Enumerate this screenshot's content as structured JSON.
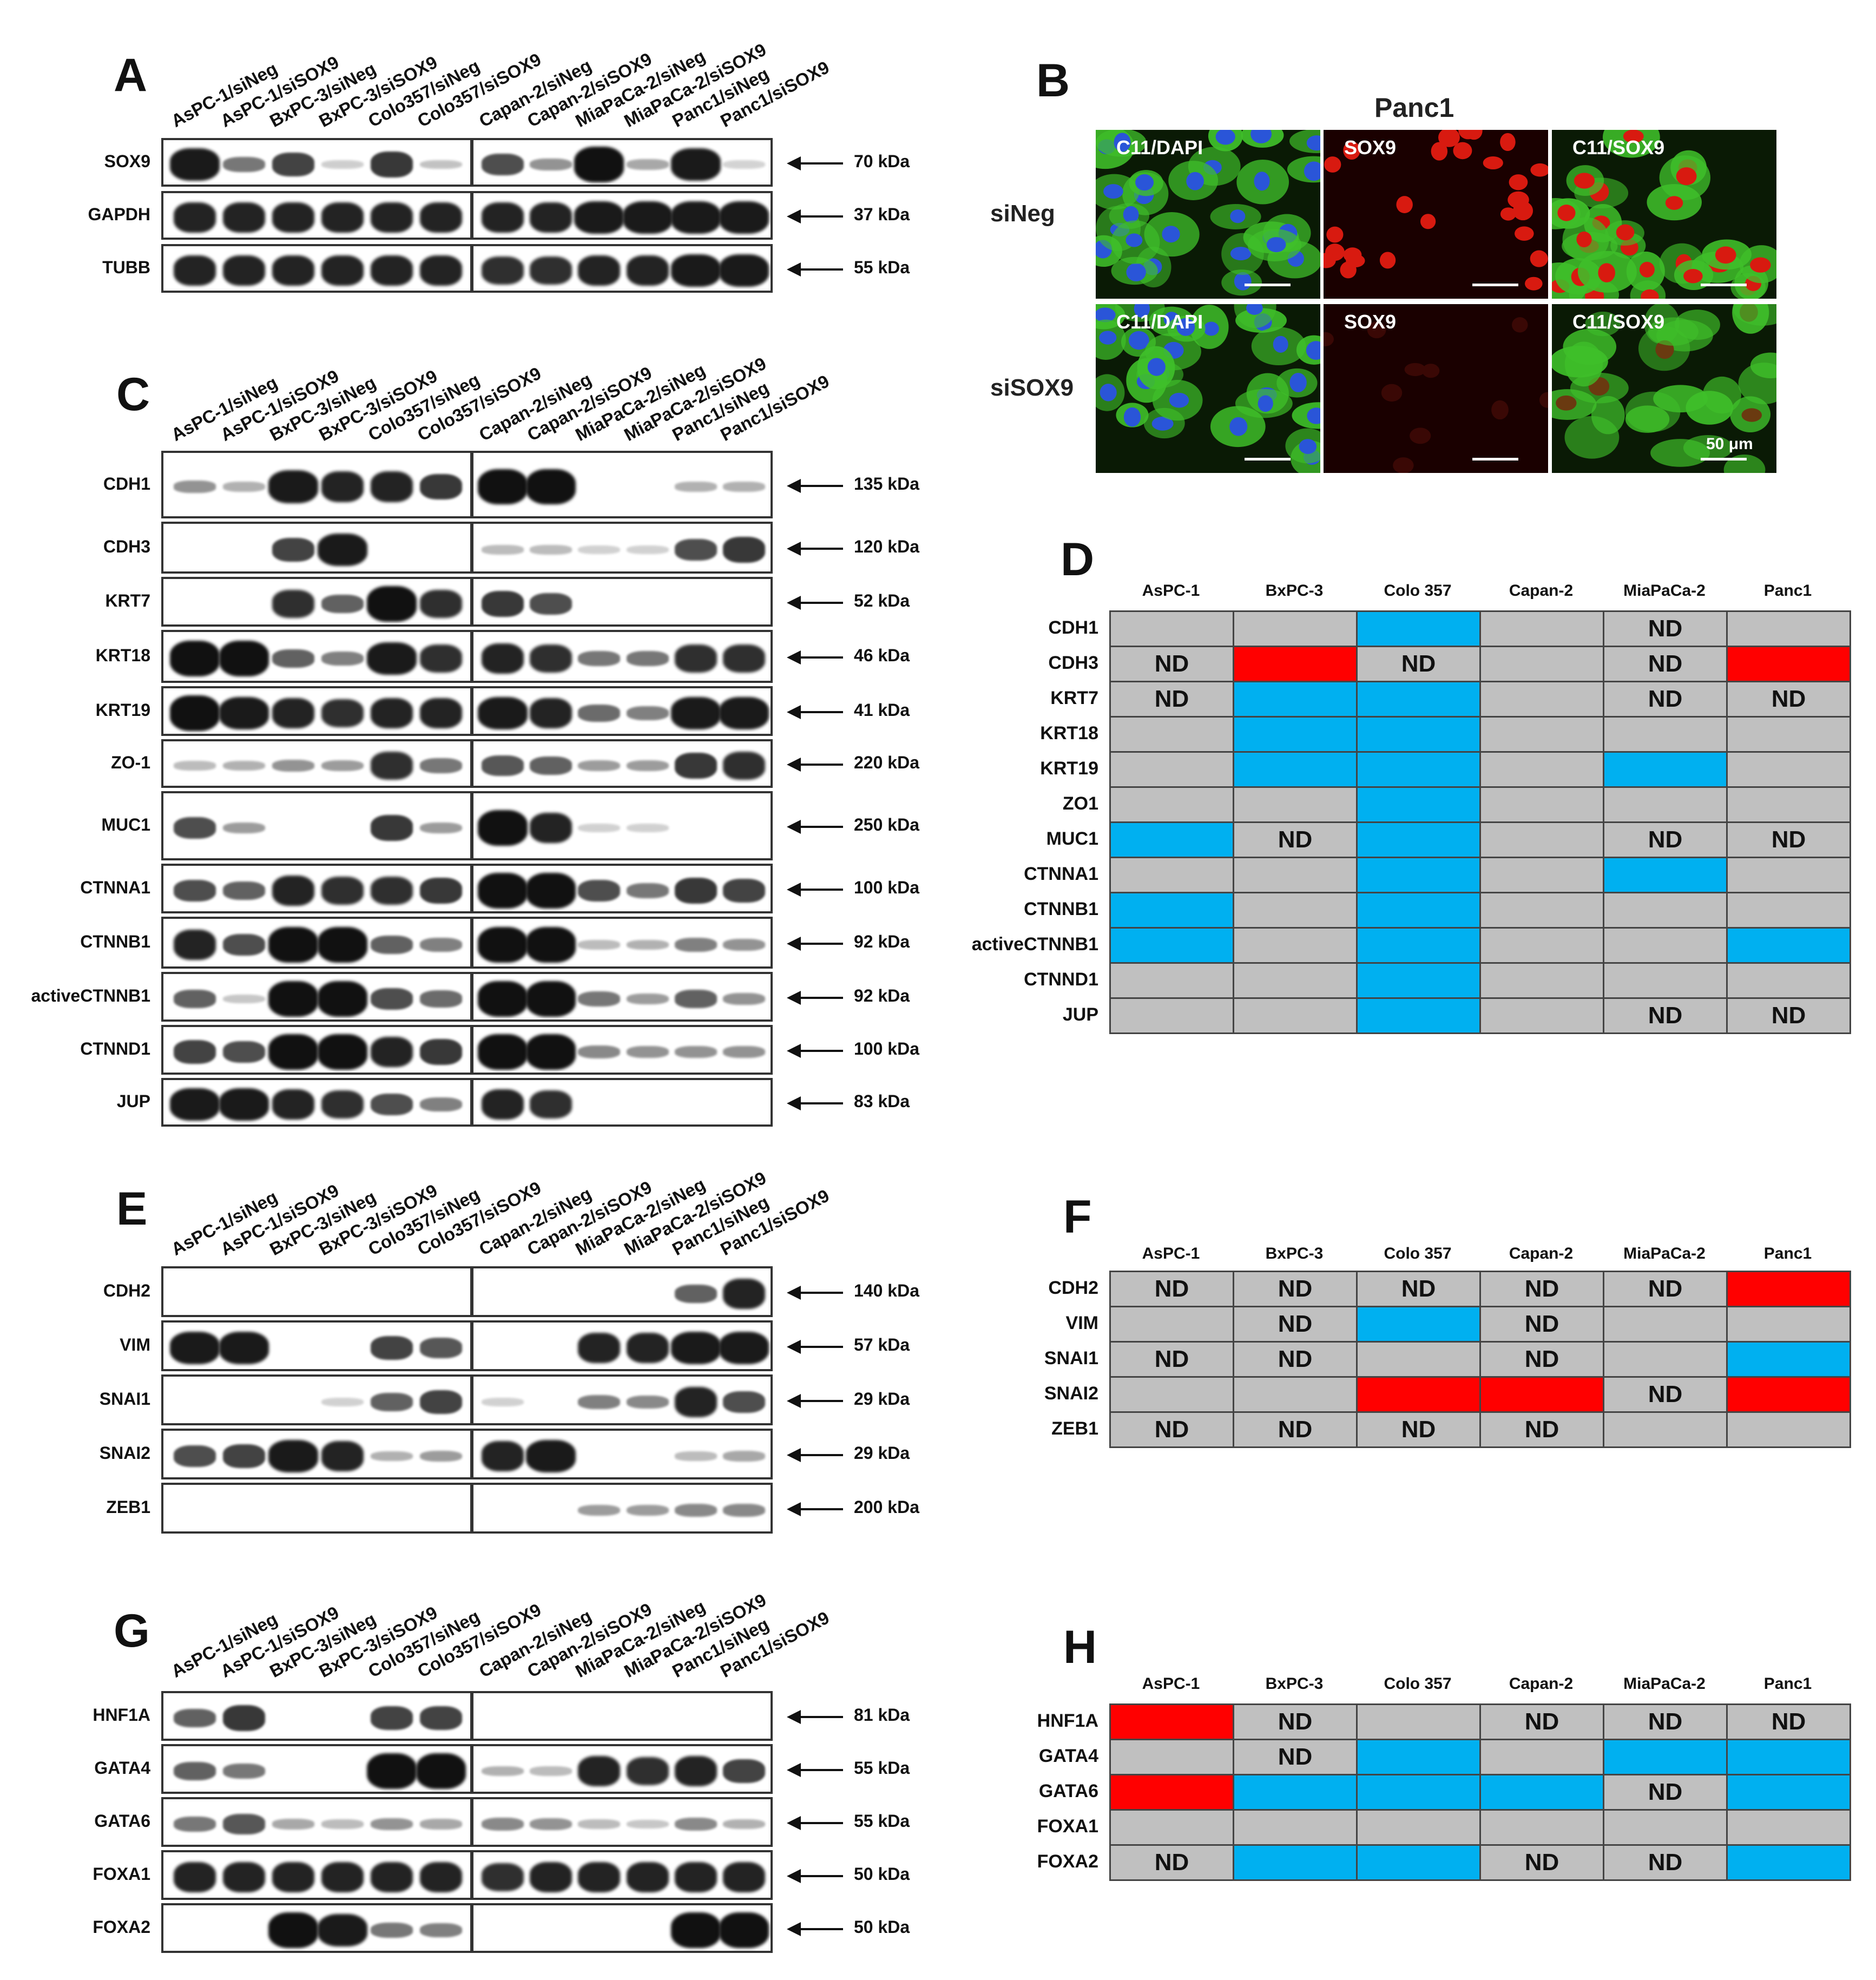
{
  "lanes": [
    "AsPC-1/siNeg",
    "AsPC-1/siSOX9",
    "BxPC-3/siNeg",
    "BxPC-3/siSOX9",
    "Colo357/siNeg",
    "Colo357/siSOX9",
    "Capan-2/siNeg",
    "Capan-2/siSOX9",
    "MiaPaCa-2/siNeg",
    "MiaPaCa-2/siSOX9",
    "Panc1/siNeg",
    "Panc1/siSOX9"
  ],
  "panels": {
    "A": {
      "label": "A",
      "blots": [
        {
          "protein": "SOX9",
          "kda": "70 kDa",
          "intensity": [
            0.95,
            0.5,
            0.75,
            0.06,
            0.8,
            0.12,
            0.7,
            0.35,
            1.0,
            0.25,
            0.95,
            0.03
          ]
        },
        {
          "protein": "GAPDH",
          "kda": "37 kDa",
          "intensity": [
            0.9,
            0.9,
            0.9,
            0.9,
            0.9,
            0.9,
            0.9,
            0.9,
            0.95,
            0.95,
            0.95,
            0.95
          ]
        },
        {
          "protein": "TUBB",
          "kda": "55 kDa",
          "intensity": [
            0.9,
            0.9,
            0.9,
            0.9,
            0.9,
            0.9,
            0.85,
            0.85,
            0.9,
            0.9,
            0.95,
            0.95
          ]
        }
      ]
    },
    "C": {
      "label": "C",
      "blots": [
        {
          "protein": "CDH1",
          "kda": "135 kDa",
          "intensity": [
            0.35,
            0.2,
            0.95,
            0.9,
            0.9,
            0.8,
            1.0,
            1.0,
            0,
            0,
            0.2,
            0.2
          ]
        },
        {
          "protein": "CDH3",
          "kda": "120 kDa",
          "intensity": [
            0,
            0,
            0.75,
            0.95,
            0,
            0,
            0.15,
            0.15,
            0.05,
            0.05,
            0.7,
            0.8
          ]
        },
        {
          "protein": "KRT7",
          "kda": "52 kDa",
          "intensity": [
            0,
            0,
            0.85,
            0.6,
            1.0,
            0.85,
            0.8,
            0.7,
            0,
            0,
            0,
            0
          ]
        },
        {
          "protein": "KRT18",
          "kda": "46 kDa",
          "intensity": [
            1.0,
            1.0,
            0.6,
            0.45,
            0.95,
            0.85,
            0.9,
            0.85,
            0.5,
            0.5,
            0.85,
            0.85
          ]
        },
        {
          "protein": "KRT19",
          "kda": "41 kDa",
          "intensity": [
            1.0,
            0.95,
            0.9,
            0.85,
            0.9,
            0.9,
            0.95,
            0.9,
            0.55,
            0.45,
            0.95,
            0.95
          ]
        },
        {
          "protein": "ZO-1",
          "kda": "220 kDa",
          "intensity": [
            0.15,
            0.2,
            0.35,
            0.3,
            0.85,
            0.5,
            0.65,
            0.6,
            0.3,
            0.3,
            0.8,
            0.85
          ]
        },
        {
          "protein": "MUC1",
          "kda": "250 kDa",
          "intensity": [
            0.7,
            0.3,
            0,
            0,
            0.8,
            0.3,
            1.0,
            0.9,
            0.05,
            0.05,
            0,
            0
          ]
        },
        {
          "protein": "CTNNA1",
          "kda": "100 kDa",
          "intensity": [
            0.7,
            0.6,
            0.9,
            0.85,
            0.85,
            0.8,
            1.0,
            1.0,
            0.7,
            0.5,
            0.8,
            0.75
          ]
        },
        {
          "protein": "CTNNB1",
          "kda": "92 kDa",
          "intensity": [
            0.9,
            0.7,
            1.0,
            1.0,
            0.6,
            0.45,
            1.0,
            1.0,
            0.15,
            0.2,
            0.45,
            0.35
          ]
        },
        {
          "protein": "activeCTNNB1",
          "kda": "92 kDa",
          "intensity": [
            0.6,
            0.1,
            1.0,
            1.0,
            0.7,
            0.55,
            1.0,
            1.0,
            0.5,
            0.3,
            0.6,
            0.35
          ]
        },
        {
          "protein": "CTNND1",
          "kda": "100 kDa",
          "intensity": [
            0.75,
            0.7,
            1.0,
            1.0,
            0.9,
            0.8,
            1.0,
            1.0,
            0.4,
            0.35,
            0.35,
            0.35
          ]
        },
        {
          "protein": "JUP",
          "kda": "83 kDa",
          "intensity": [
            0.95,
            0.95,
            0.9,
            0.85,
            0.7,
            0.45,
            0.9,
            0.85,
            0,
            0,
            0,
            0
          ]
        }
      ]
    },
    "E": {
      "label": "E",
      "blots": [
        {
          "protein": "CDH2",
          "kda": "140 kDa",
          "intensity": [
            0,
            0,
            0,
            0,
            0,
            0,
            0,
            0,
            0,
            0,
            0.6,
            0.9
          ]
        },
        {
          "protein": "VIM",
          "kda": "57 kDa",
          "intensity": [
            0.95,
            0.95,
            0,
            0,
            0.75,
            0.65,
            0,
            0,
            0.9,
            0.9,
            0.95,
            0.95
          ]
        },
        {
          "protein": "SNAI1",
          "kda": "29 kDa",
          "intensity": [
            0,
            0,
            0,
            0.05,
            0.6,
            0.75,
            0.05,
            0,
            0.45,
            0.4,
            0.9,
            0.7
          ]
        },
        {
          "protein": "SNAI2",
          "kda": "29 kDa",
          "intensity": [
            0.7,
            0.75,
            0.95,
            0.9,
            0.2,
            0.3,
            0.9,
            0.95,
            0,
            0,
            0.15,
            0.25
          ]
        },
        {
          "protein": "ZEB1",
          "kda": "200 kDa",
          "intensity": [
            0,
            0,
            0,
            0,
            0,
            0,
            0,
            0,
            0.3,
            0.3,
            0.4,
            0.4
          ]
        }
      ]
    },
    "G": {
      "label": "G",
      "blots": [
        {
          "protein": "HNF1A",
          "kda": "81 kDa",
          "intensity": [
            0.6,
            0.8,
            0,
            0,
            0.75,
            0.75,
            0,
            0,
            0,
            0,
            0,
            0
          ]
        },
        {
          "protein": "GATA4",
          "kda": "55 kDa",
          "intensity": [
            0.6,
            0.5,
            0,
            0,
            1.0,
            1.0,
            0.2,
            0.15,
            0.9,
            0.85,
            0.9,
            0.75
          ]
        },
        {
          "protein": "GATA6",
          "kda": "55 kDa",
          "intensity": [
            0.5,
            0.65,
            0.25,
            0.15,
            0.35,
            0.25,
            0.4,
            0.35,
            0.15,
            0.1,
            0.4,
            0.2
          ]
        },
        {
          "protein": "FOXA1",
          "kda": "50 kDa",
          "intensity": [
            0.9,
            0.9,
            0.9,
            0.9,
            0.9,
            0.9,
            0.85,
            0.9,
            0.9,
            0.9,
            0.9,
            0.9
          ]
        },
        {
          "protein": "FOXA2",
          "kda": "50 kDa",
          "intensity": [
            0,
            0,
            1.0,
            0.95,
            0.5,
            0.45,
            0,
            0,
            0,
            0,
            1.0,
            1.0
          ]
        }
      ]
    }
  },
  "panelB": {
    "label": "B",
    "title": "Panc1",
    "rows": [
      {
        "label": "siNeg",
        "images": [
          {
            "title": "C11/DAPI",
            "type": "merge-dapi"
          },
          {
            "title": "SOX9",
            "type": "red-nuclei"
          },
          {
            "title": "C11/SOX9",
            "type": "merge-sox9"
          }
        ]
      },
      {
        "label": "siSOX9",
        "images": [
          {
            "title": "C11/DAPI",
            "type": "merge-dapi"
          },
          {
            "title": "SOX9",
            "type": "red-empty"
          },
          {
            "title": "C11/SOX9",
            "type": "green-only"
          }
        ]
      }
    ],
    "scale_label": "50 μm"
  },
  "tables": {
    "D": {
      "label": "D",
      "columns": [
        "AsPC-1",
        "BxPC-3",
        "Colo 357",
        "Capan-2",
        "MiaPaCa-2",
        "Panc1"
      ],
      "rows": [
        {
          "name": "CDH1",
          "cells": [
            "g",
            "g",
            "b",
            "g",
            "ND",
            "g"
          ]
        },
        {
          "name": "CDH3",
          "cells": [
            "ND",
            "r",
            "ND",
            "g",
            "ND",
            "r"
          ]
        },
        {
          "name": "KRT7",
          "cells": [
            "ND",
            "b",
            "b",
            "g",
            "ND",
            "ND"
          ]
        },
        {
          "name": "KRT18",
          "cells": [
            "g",
            "b",
            "b",
            "g",
            "g",
            "g"
          ]
        },
        {
          "name": "KRT19",
          "cells": [
            "g",
            "b",
            "b",
            "g",
            "b",
            "g"
          ]
        },
        {
          "name": "ZO1",
          "cells": [
            "g",
            "g",
            "b",
            "g",
            "g",
            "g"
          ]
        },
        {
          "name": "MUC1",
          "cells": [
            "b",
            "ND",
            "b",
            "g",
            "ND",
            "ND"
          ]
        },
        {
          "name": "CTNNA1",
          "cells": [
            "g",
            "g",
            "b",
            "g",
            "b",
            "g"
          ]
        },
        {
          "name": "CTNNB1",
          "cells": [
            "b",
            "g",
            "b",
            "g",
            "g",
            "g"
          ]
        },
        {
          "name": "activeCTNNB1",
          "cells": [
            "b",
            "g",
            "b",
            "g",
            "g",
            "b"
          ]
        },
        {
          "name": "CTNND1",
          "cells": [
            "g",
            "g",
            "b",
            "g",
            "g",
            "g"
          ]
        },
        {
          "name": "JUP",
          "cells": [
            "g",
            "g",
            "b",
            "g",
            "ND",
            "ND"
          ]
        }
      ]
    },
    "F": {
      "label": "F",
      "columns": [
        "AsPC-1",
        "BxPC-3",
        "Colo 357",
        "Capan-2",
        "MiaPaCa-2",
        "Panc1"
      ],
      "rows": [
        {
          "name": "CDH2",
          "cells": [
            "ND",
            "ND",
            "ND",
            "ND",
            "ND",
            "r"
          ]
        },
        {
          "name": "VIM",
          "cells": [
            "g",
            "ND",
            "b",
            "ND",
            "g",
            "g"
          ]
        },
        {
          "name": "SNAI1",
          "cells": [
            "ND",
            "ND",
            "g",
            "ND",
            "g",
            "b"
          ]
        },
        {
          "name": "SNAI2",
          "cells": [
            "g",
            "g",
            "r",
            "r",
            "ND",
            "r"
          ]
        },
        {
          "name": "ZEB1",
          "cells": [
            "ND",
            "ND",
            "ND",
            "ND",
            "g",
            "g"
          ]
        }
      ]
    },
    "H": {
      "label": "H",
      "columns": [
        "AsPC-1",
        "BxPC-3",
        "Colo 357",
        "Capan-2",
        "MiaPaCa-2",
        "Panc1"
      ],
      "rows": [
        {
          "name": "HNF1A",
          "cells": [
            "r",
            "ND",
            "g",
            "ND",
            "ND",
            "ND"
          ]
        },
        {
          "name": "GATA4",
          "cells": [
            "g",
            "ND",
            "b",
            "g",
            "b",
            "b"
          ]
        },
        {
          "name": "GATA6",
          "cells": [
            "r",
            "b",
            "b",
            "b",
            "ND",
            "b"
          ]
        },
        {
          "name": "FOXA1",
          "cells": [
            "g",
            "g",
            "g",
            "g",
            "g",
            "g"
          ]
        },
        {
          "name": "FOXA2",
          "cells": [
            "ND",
            "b",
            "b",
            "ND",
            "ND",
            "b"
          ]
        }
      ]
    }
  },
  "colors": {
    "g": "#c0c0c0",
    "b": "#00b0f0",
    "r": "#ff0000",
    "ND": "#c0c0c0"
  }
}
